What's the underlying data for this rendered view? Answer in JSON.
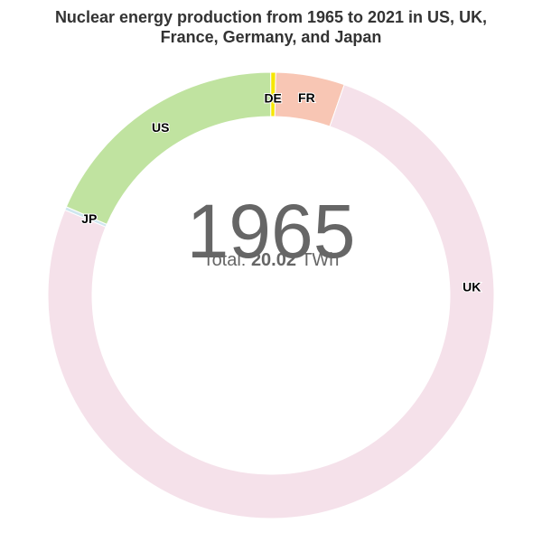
{
  "chart_data": {
    "type": "pie",
    "title_line1": "Nuclear energy production from 1965 to 2021 in US, UK,",
    "title_line2": "France, Germany, and Japan",
    "center_year": "1965",
    "total_prefix": "Total:",
    "total_value": "20.02",
    "total_unit": "TWh",
    "unit": "TWh",
    "slices": [
      {
        "label": "FR",
        "value": 1.0,
        "color": "#f8c6b4"
      },
      {
        "label": "UK",
        "value": 15.2,
        "color": "#f5e1ea"
      },
      {
        "label": "JP",
        "value": 0.05,
        "color": "#cfe6ef"
      },
      {
        "label": "US",
        "value": 3.7,
        "color": "#c0e3a0"
      },
      {
        "label": "DE",
        "value": 0.07,
        "color": "#f6e602"
      }
    ]
  }
}
